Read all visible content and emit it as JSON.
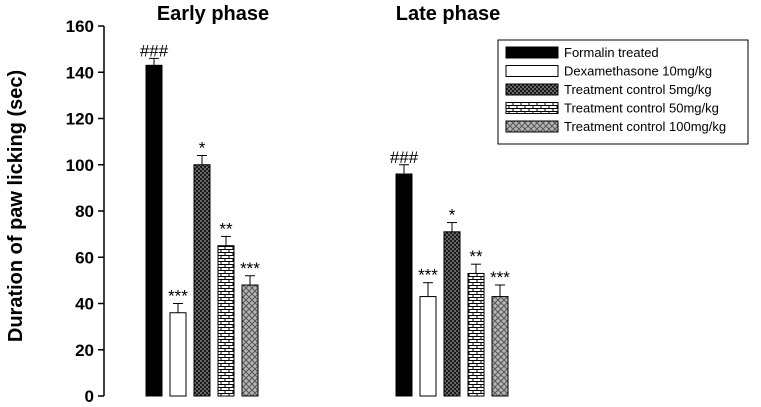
{
  "chart_data": {
    "type": "bar",
    "categories": [
      "Early phase",
      "Late phase"
    ],
    "ylabel": "Duration of paw licking (sec)",
    "xlabel": "",
    "ylim": [
      0,
      160
    ],
    "yticks": [
      0,
      20,
      40,
      60,
      80,
      100,
      120,
      140,
      160
    ],
    "legend_position": "top-right",
    "series": [
      {
        "name": "Formalin treated",
        "values": [
          143,
          96
        ],
        "errors": [
          3,
          4
        ],
        "annotations": [
          "###",
          "###"
        ],
        "fill": "solid-black"
      },
      {
        "name": "Dexamethasone 10mg/kg",
        "values": [
          36,
          43
        ],
        "errors": [
          4,
          6
        ],
        "annotations": [
          "***",
          "***"
        ],
        "fill": "white"
      },
      {
        "name": "Treatment control 5mg/kg",
        "values": [
          100,
          71
        ],
        "errors": [
          4,
          4
        ],
        "annotations": [
          "*",
          "*"
        ],
        "fill": "dark-checker"
      },
      {
        "name": "Treatment control 50mg/kg",
        "values": [
          65,
          53
        ],
        "errors": [
          4,
          4
        ],
        "annotations": [
          "**",
          "**"
        ],
        "fill": "horizontal-bricks"
      },
      {
        "name": "Treatment control 100mg/kg",
        "values": [
          48,
          43
        ],
        "errors": [
          4,
          5
        ],
        "annotations": [
          "***",
          "***"
        ],
        "fill": "gray-crosshatch"
      }
    ]
  }
}
